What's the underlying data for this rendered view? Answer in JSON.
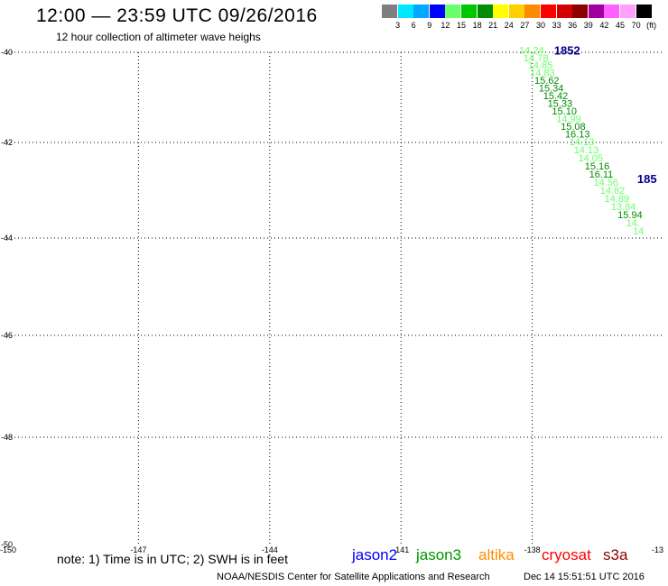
{
  "header": {
    "title": "12:00 — 23:59 UTC 09/26/2016",
    "subtitle": "12 hour collection of altimeter wave heighs"
  },
  "legend": {
    "unit": "(ft)",
    "bins": [
      {
        "label": "3",
        "color": "#7f7f7f"
      },
      {
        "label": "6",
        "color": "#00e8ff"
      },
      {
        "label": "9",
        "color": "#00a8ff"
      },
      {
        "label": "12",
        "color": "#0000ff"
      },
      {
        "label": "15",
        "color": "#6aff6a"
      },
      {
        "label": "18",
        "color": "#00c800"
      },
      {
        "label": "21",
        "color": "#008c00"
      },
      {
        "label": "24",
        "color": "#ffff00"
      },
      {
        "label": "27",
        "color": "#ffd000"
      },
      {
        "label": "30",
        "color": "#ff8c00"
      },
      {
        "label": "33",
        "color": "#ff0000"
      },
      {
        "label": "36",
        "color": "#d20000"
      },
      {
        "label": "39",
        "color": "#8c0000"
      },
      {
        "label": "42",
        "color": "#a000a0"
      },
      {
        "label": "45",
        "color": "#ff60ff"
      },
      {
        "label": "70",
        "color": "#ffa0ff"
      },
      {
        "label": "",
        "color": "#000000"
      }
    ]
  },
  "map": {
    "lat_ticks": [
      {
        "label": "-40",
        "value": -40
      },
      {
        "label": "-42",
        "value": -42
      },
      {
        "label": "-44",
        "value": -44
      },
      {
        "label": "-46",
        "value": -46
      },
      {
        "label": "-48",
        "value": -48
      },
      {
        "label": "-50",
        "value": -50
      }
    ],
    "lon_ticks": [
      {
        "label": "-150",
        "value": -150
      },
      {
        "label": "-147",
        "value": -147
      },
      {
        "label": "-144",
        "value": -144
      },
      {
        "label": "-141",
        "value": -141
      },
      {
        "label": "-138",
        "value": -138
      },
      {
        "label": "-13",
        "value": -135
      }
    ],
    "passes": [
      {
        "label": "1852",
        "lon": -137.5,
        "lat": -39.95,
        "color": "#00008b"
      },
      {
        "label": "185",
        "lon": -135.6,
        "lat": -42.75,
        "color": "#00008b"
      }
    ],
    "observations": [
      {
        "label": "14.24",
        "lon": -138.3,
        "lat": -39.95,
        "color": "#6aff6a"
      },
      {
        "label": "14.78",
        "lon": -138.2,
        "lat": -40.12,
        "color": "#6aff6a"
      },
      {
        "label": "14.85",
        "lon": -138.1,
        "lat": -40.28,
        "color": "#6aff6a"
      },
      {
        "label": "14.83",
        "lon": -138.05,
        "lat": -40.45,
        "color": "#6aff6a"
      },
      {
        "label": "15.62",
        "lon": -137.95,
        "lat": -40.62,
        "color": "#008c00"
      },
      {
        "label": "15.34",
        "lon": -137.85,
        "lat": -40.79,
        "color": "#008c00"
      },
      {
        "label": "15.42",
        "lon": -137.75,
        "lat": -40.96,
        "color": "#008c00"
      },
      {
        "label": "15.33",
        "lon": -137.65,
        "lat": -41.13,
        "color": "#008c00"
      },
      {
        "label": "15.10",
        "lon": -137.55,
        "lat": -41.3,
        "color": "#008c00"
      },
      {
        "label": "14.99",
        "lon": -137.45,
        "lat": -41.47,
        "color": "#6aff6a"
      },
      {
        "label": "15.08",
        "lon": -137.35,
        "lat": -41.64,
        "color": "#008c00"
      },
      {
        "label": "16.13",
        "lon": -137.25,
        "lat": -41.81,
        "color": "#008c00"
      },
      {
        "label": "14.13",
        "lon": -137.15,
        "lat": -41.98,
        "color": "#6aff6a"
      },
      {
        "label": "14.13",
        "lon": -137.05,
        "lat": -42.15,
        "color": "#6aff6a"
      },
      {
        "label": "14.05",
        "lon": -136.95,
        "lat": -42.32,
        "color": "#6aff6a"
      },
      {
        "label": "15.16",
        "lon": -136.8,
        "lat": -42.49,
        "color": "#008c00"
      },
      {
        "label": "16.11",
        "lon": -136.7,
        "lat": -42.66,
        "color": "#008c00"
      },
      {
        "label": "14.56",
        "lon": -136.6,
        "lat": -42.83,
        "color": "#6aff6a"
      },
      {
        "label": "14.82",
        "lon": -136.45,
        "lat": -43.0,
        "color": "#6aff6a"
      },
      {
        "label": "14.89",
        "lon": -136.35,
        "lat": -43.17,
        "color": "#6aff6a"
      },
      {
        "label": "13.84",
        "lon": -136.2,
        "lat": -43.34,
        "color": "#6aff6a"
      },
      {
        "label": "15.94",
        "lon": -136.05,
        "lat": -43.51,
        "color": "#008c00"
      },
      {
        "label": "14.",
        "lon": -135.85,
        "lat": -43.68,
        "color": "#6aff6a"
      },
      {
        "label": "14",
        "lon": -135.7,
        "lat": -43.85,
        "color": "#6aff6a"
      }
    ]
  },
  "note": "note: 1) Time is in UTC; 2) SWH is in feet",
  "satellites": [
    {
      "label": "jason2",
      "color": "#0000ff"
    },
    {
      "label": "jason3",
      "color": "#009600"
    },
    {
      "label": "altika",
      "color": "#ff8c00"
    },
    {
      "label": "cryosat",
      "color": "#ff0000"
    },
    {
      "label": "s3a",
      "color": "#8b0000"
    }
  ],
  "footer": {
    "credit": "NOAA/NESDIS Center for Satellite Applications and Research",
    "timestamp": "Dec 14 15:51:51 UTC 2016"
  }
}
